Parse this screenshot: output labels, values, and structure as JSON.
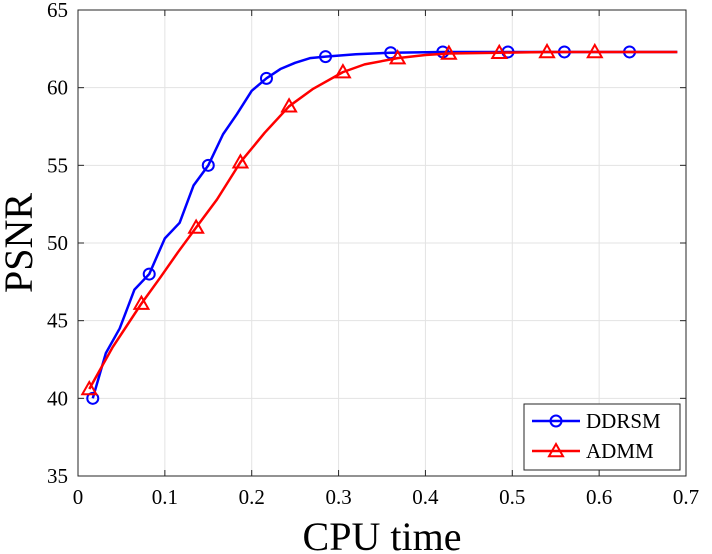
{
  "chart_data": {
    "type": "line",
    "title": "",
    "xlabel": "CPU time",
    "ylabel": "PSNR",
    "xlim": [
      0,
      0.7
    ],
    "ylim": [
      35,
      65
    ],
    "xticks": [
      0,
      0.1,
      0.2,
      0.3,
      0.4,
      0.5,
      0.6,
      0.7
    ],
    "xtick_labels": [
      "0",
      "0.1",
      "0.2",
      "0.3",
      "0.4",
      "0.5",
      "0.6",
      "0.7"
    ],
    "yticks": [
      35,
      40,
      45,
      50,
      55,
      60,
      65
    ],
    "ytick_labels": [
      "35",
      "40",
      "45",
      "50",
      "55",
      "60",
      "65"
    ],
    "grid": true,
    "legend_position": "bottom-right",
    "series": [
      {
        "name": "DDRSM",
        "color": "#0000ff",
        "marker": "circle",
        "x": [
          0.017,
          0.032,
          0.048,
          0.065,
          0.082,
          0.1,
          0.117,
          0.133,
          0.15,
          0.167,
          0.183,
          0.2,
          0.217,
          0.233,
          0.25,
          0.267,
          0.285,
          0.32,
          0.36,
          0.42,
          0.5,
          0.6,
          0.69
        ],
        "y": [
          40.0,
          42.9,
          44.5,
          47.0,
          48.0,
          50.3,
          51.3,
          53.7,
          55.0,
          57.0,
          58.3,
          59.8,
          60.6,
          61.2,
          61.6,
          61.9,
          62.0,
          62.15,
          62.25,
          62.3,
          62.3,
          62.3,
          62.3
        ],
        "marker_x": [
          0.017,
          0.082,
          0.15,
          0.217,
          0.285,
          0.36,
          0.42,
          0.495,
          0.56,
          0.635
        ],
        "marker_y": [
          40.0,
          48.0,
          55.0,
          60.6,
          62.0,
          62.25,
          62.3,
          62.3,
          62.3,
          62.3
        ]
      },
      {
        "name": "ADMM",
        "color": "#ff0000",
        "marker": "triangle",
        "x": [
          0.013,
          0.04,
          0.073,
          0.095,
          0.115,
          0.136,
          0.16,
          0.187,
          0.215,
          0.243,
          0.27,
          0.305,
          0.33,
          0.368,
          0.4,
          0.427,
          0.485,
          0.54,
          0.595,
          0.69
        ],
        "y": [
          40.6,
          43.3,
          46.1,
          47.8,
          49.4,
          51.0,
          52.8,
          55.2,
          57.1,
          58.8,
          59.9,
          61.0,
          61.5,
          61.9,
          62.1,
          62.2,
          62.25,
          62.3,
          62.3,
          62.3
        ],
        "marker_x": [
          0.013,
          0.073,
          0.136,
          0.187,
          0.243,
          0.305,
          0.368,
          0.427,
          0.485,
          0.54,
          0.595
        ],
        "marker_y": [
          40.6,
          46.1,
          51.0,
          55.2,
          58.8,
          61.0,
          61.9,
          62.2,
          62.25,
          62.3,
          62.3
        ]
      }
    ]
  }
}
